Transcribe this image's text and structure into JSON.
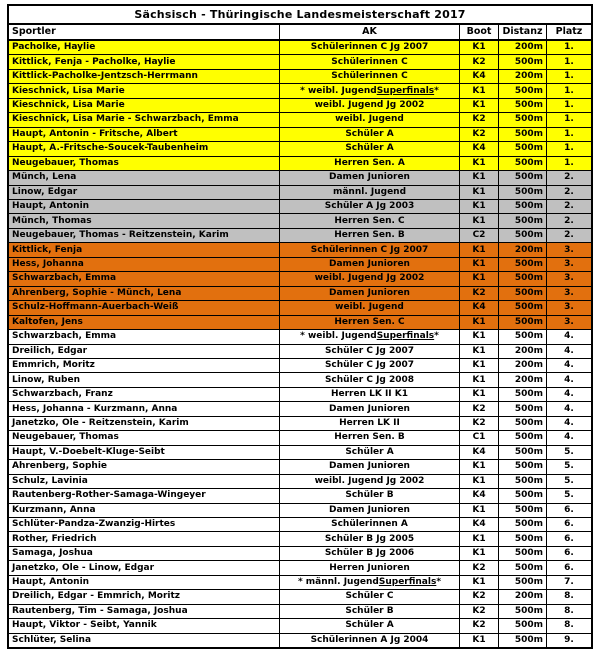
{
  "title": "Sächsisch - Thüringische Landesmeisterschaft 2017",
  "table": {
    "columns": [
      "Sportler",
      "AK",
      "Boot",
      "Distanz",
      "Platz"
    ],
    "place_colors": {
      "1.": "#FFFF00",
      "2.": "#C0C0C0",
      "3.": "#E2700E",
      "default": "#FFFFFF"
    },
    "rows": [
      {
        "sportler": "Pacholke, Haylie",
        "ak": "Schülerinnen C Jg 2007",
        "boot": "K1",
        "distanz": "200m",
        "platz": "1."
      },
      {
        "sportler": "Kittlick, Fenja - Pacholke, Haylie",
        "ak": "Schülerinnen C",
        "boot": "K2",
        "distanz": "500m",
        "platz": "1."
      },
      {
        "sportler": "Kittlick-Pacholke-Jentzsch-Herrmann",
        "ak": "Schülerinnen C",
        "boot": "K4",
        "distanz": "200m",
        "platz": "1."
      },
      {
        "sportler": "Kieschnick, Lisa Marie",
        "ak": "* weibl. Jugend Superfinals *",
        "underline": "Superfinals",
        "boot": "K1",
        "distanz": "500m",
        "platz": "1."
      },
      {
        "sportler": "Kieschnick, Lisa Marie",
        "ak": "weibl. Jugend Jg 2002",
        "boot": "K1",
        "distanz": "500m",
        "platz": "1."
      },
      {
        "sportler": "Kieschnick, Lisa Marie - Schwarzbach, Emma",
        "ak": "weibl. Jugend",
        "boot": "K2",
        "distanz": "500m",
        "platz": "1."
      },
      {
        "sportler": "Haupt, Antonin - Fritsche, Albert",
        "ak": "Schüler A",
        "boot": "K2",
        "distanz": "500m",
        "platz": "1."
      },
      {
        "sportler": "Haupt, A.-Fritsche-Soucek-Taubenheim",
        "ak": "Schüler A",
        "boot": "K4",
        "distanz": "500m",
        "platz": "1."
      },
      {
        "sportler": "Neugebauer, Thomas",
        "ak": "Herren Sen. A",
        "boot": "K1",
        "distanz": "500m",
        "platz": "1."
      },
      {
        "sportler": "Münch, Lena",
        "ak": "Damen Junioren",
        "boot": "K1",
        "distanz": "500m",
        "platz": "2."
      },
      {
        "sportler": "Linow, Edgar",
        "ak": "männl. Jugend",
        "boot": "K1",
        "distanz": "500m",
        "platz": "2."
      },
      {
        "sportler": "Haupt, Antonin",
        "ak": "Schüler A Jg 2003",
        "boot": "K1",
        "distanz": "500m",
        "platz": "2."
      },
      {
        "sportler": "Münch, Thomas",
        "ak": "Herren Sen. C",
        "boot": "K1",
        "distanz": "500m",
        "platz": "2."
      },
      {
        "sportler": "Neugebauer, Thomas - Reitzenstein, Karim",
        "ak": "Herren Sen. B",
        "boot": "C2",
        "distanz": "500m",
        "platz": "2."
      },
      {
        "sportler": "Kittlick, Fenja",
        "ak": "Schülerinnen C Jg 2007",
        "boot": "K1",
        "distanz": "200m",
        "platz": "3."
      },
      {
        "sportler": "Hess, Johanna",
        "ak": "Damen Junioren",
        "boot": "K1",
        "distanz": "500m",
        "platz": "3."
      },
      {
        "sportler": "Schwarzbach, Emma",
        "ak": "weibl. Jugend Jg 2002",
        "boot": "K1",
        "distanz": "500m",
        "platz": "3."
      },
      {
        "sportler": "Ahrenberg, Sophie - Münch, Lena",
        "ak": "Damen Junioren",
        "boot": "K2",
        "distanz": "500m",
        "platz": "3."
      },
      {
        "sportler": "Schulz-Hoffmann-Auerbach-Weiß",
        "ak": "weibl. Jugend",
        "boot": "K4",
        "distanz": "500m",
        "platz": "3."
      },
      {
        "sportler": "Kaltofen, Jens",
        "ak": "Herren Sen. C",
        "boot": "K1",
        "distanz": "500m",
        "platz": "3."
      },
      {
        "sportler": "Schwarzbach, Emma",
        "ak": "* weibl. Jugend Superfinals *",
        "underline": "Superfinals",
        "boot": "K1",
        "distanz": "500m",
        "platz": "4."
      },
      {
        "sportler": "Dreilich, Edgar",
        "ak": "Schüler C Jg 2007",
        "boot": "K1",
        "distanz": "200m",
        "platz": "4."
      },
      {
        "sportler": "Emmrich, Moritz",
        "ak": "Schüler C Jg 2007",
        "boot": "K1",
        "distanz": "200m",
        "platz": "4."
      },
      {
        "sportler": "Linow, Ruben",
        "ak": "Schüler C Jg 2008",
        "boot": "K1",
        "distanz": "200m",
        "platz": "4."
      },
      {
        "sportler": "Schwarzbach, Franz",
        "ak": "Herren LK II K1",
        "boot": "K1",
        "distanz": "500m",
        "platz": "4."
      },
      {
        "sportler": "Hess, Johanna - Kurzmann, Anna",
        "ak": "Damen Junioren",
        "boot": "K2",
        "distanz": "500m",
        "platz": "4."
      },
      {
        "sportler": "Janetzko, Ole - Reitzenstein, Karim",
        "ak": "Herren LK II",
        "boot": "K2",
        "distanz": "500m",
        "platz": "4."
      },
      {
        "sportler": "Neugebauer, Thomas",
        "ak": "Herren Sen. B",
        "boot": "C1",
        "distanz": "500m",
        "platz": "4."
      },
      {
        "sportler": "Haupt, V.-Doebelt-Kluge-Seibt",
        "ak": "Schüler A",
        "boot": "K4",
        "distanz": "500m",
        "platz": "5."
      },
      {
        "sportler": "Ahrenberg, Sophie",
        "ak": "Damen Junioren",
        "boot": "K1",
        "distanz": "500m",
        "platz": "5."
      },
      {
        "sportler": "Schulz, Lavinia",
        "ak": "weibl. Jugend Jg 2002",
        "boot": "K1",
        "distanz": "500m",
        "platz": "5."
      },
      {
        "sportler": "Rautenberg-Rother-Samaga-Wingeyer",
        "ak": "Schüler B",
        "boot": "K4",
        "distanz": "500m",
        "platz": "5."
      },
      {
        "sportler": "Kurzmann, Anna",
        "ak": "Damen Junioren",
        "boot": "K1",
        "distanz": "500m",
        "platz": "6."
      },
      {
        "sportler": "Schlüter-Pandza-Zwanzig-Hirtes",
        "ak": "Schülerinnen A",
        "boot": "K4",
        "distanz": "500m",
        "platz": "6."
      },
      {
        "sportler": "Rother, Friedrich",
        "ak": "Schüler B Jg 2005",
        "boot": "K1",
        "distanz": "500m",
        "platz": "6."
      },
      {
        "sportler": "Samaga, Joshua",
        "ak": "Schüler B Jg 2006",
        "boot": "K1",
        "distanz": "500m",
        "platz": "6."
      },
      {
        "sportler": "Janetzko, Ole - Linow, Edgar",
        "ak": "Herren Junioren",
        "boot": "K2",
        "distanz": "500m",
        "platz": "6."
      },
      {
        "sportler": "Haupt, Antonin",
        "ak": "* männl. Jugend Superfinals *",
        "underline": "Superfinals",
        "boot": "K1",
        "distanz": "500m",
        "platz": "7."
      },
      {
        "sportler": "Dreilich, Edgar - Emmrich, Moritz",
        "ak": "Schüler C",
        "boot": "K2",
        "distanz": "200m",
        "platz": "8."
      },
      {
        "sportler": "Rautenberg, Tim - Samaga, Joshua",
        "ak": "Schüler B",
        "boot": "K2",
        "distanz": "500m",
        "platz": "8."
      },
      {
        "sportler": "Haupt, Viktor - Seibt, Yannik",
        "ak": "Schüler A",
        "boot": "K2",
        "distanz": "500m",
        "platz": "8."
      },
      {
        "sportler": "Schlüter, Selina",
        "ak": "Schülerinnen A Jg 2004",
        "boot": "K1",
        "distanz": "500m",
        "platz": "9."
      }
    ]
  }
}
